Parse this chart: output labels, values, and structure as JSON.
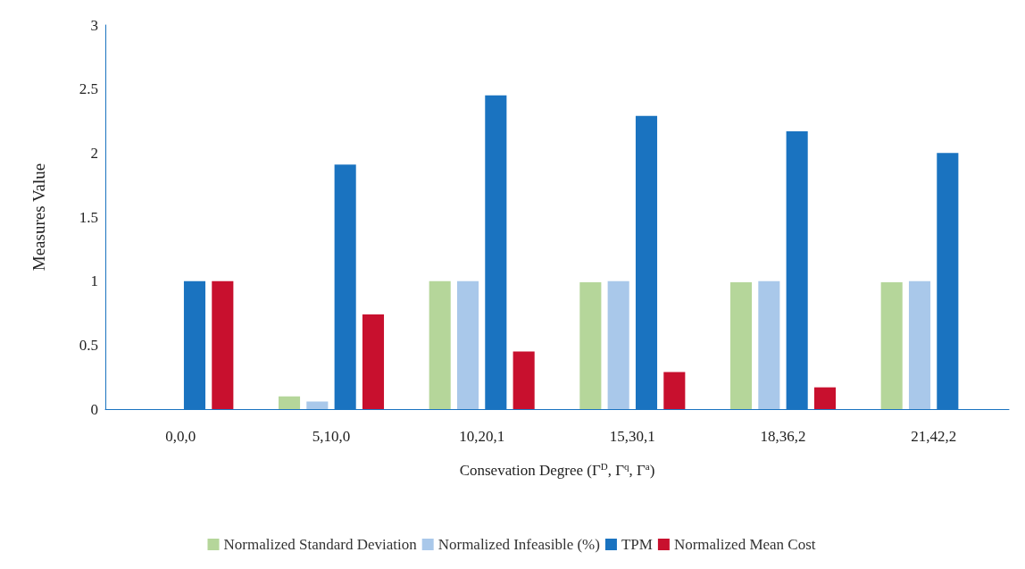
{
  "chart_data": {
    "type": "bar",
    "xlabel": "Consevation Degree (Γ$^{D}$, Γ$^{q}$, Γ$^{a}$)",
    "ylabel": "Measures Value",
    "categories": [
      "0,0,0",
      "5,10,0",
      "10,20,1",
      "15,30,1",
      "18,36,2",
      "21,42,2"
    ],
    "series": [
      {
        "name": "Normalized Standard Deviation",
        "color": "#b5d69a",
        "values": [
          0,
          0.1,
          1,
          0.99,
          0.99,
          0.99
        ]
      },
      {
        "name": "Normalized Infeasible (%)",
        "color": "#a9c8ea",
        "values": [
          0,
          0.06,
          1,
          1,
          1,
          1
        ]
      },
      {
        "name": "TPM",
        "color": "#1a73c0",
        "values": [
          1,
          1.91,
          2.45,
          2.29,
          2.17,
          2
        ]
      },
      {
        "name": "Normalized Mean Cost",
        "color": "#c8102e",
        "values": [
          1,
          0.74,
          0.45,
          0.29,
          0.17,
          null
        ]
      }
    ],
    "ylim": [
      0,
      3
    ],
    "yticks": [
      0,
      0.5,
      1,
      1.5,
      2,
      2.5,
      3
    ],
    "grid": false,
    "legend": "bottom"
  }
}
